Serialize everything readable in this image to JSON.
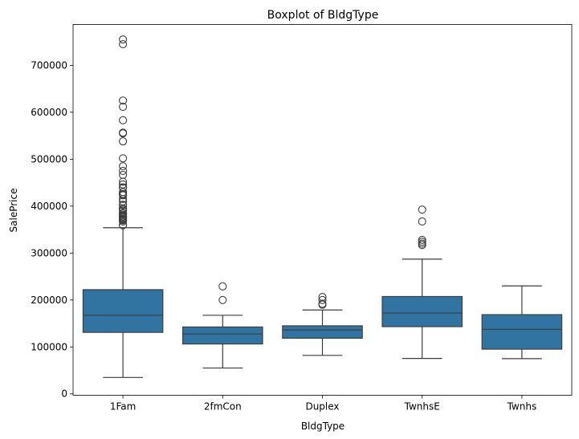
{
  "chart_data": {
    "type": "box",
    "title": "Boxplot of BldgType",
    "xlabel": "BldgType",
    "ylabel": "SalePrice",
    "ylim": [
      -3000,
      787000
    ],
    "yticks": [
      0,
      100000,
      200000,
      300000,
      400000,
      500000,
      600000,
      700000
    ],
    "ytick_labels": [
      "0",
      "100000",
      "200000",
      "300000",
      "400000",
      "500000",
      "600000",
      "700000"
    ],
    "grid": false,
    "legend": "none",
    "box_color": "#3274a1",
    "line_color": "#3d3d3d",
    "categories": [
      "1Fam",
      "2fmCon",
      "Duplex",
      "TwnhsE",
      "Twnhs"
    ],
    "boxes": [
      {
        "category": "1Fam",
        "whisker_low": 34900,
        "q1": 131000,
        "median": 167500,
        "q3": 222000,
        "whisker_high": 354000,
        "outliers": [
          755000,
          745000,
          625000,
          611657,
          582933,
          556581,
          555000,
          538000,
          501837,
          485000,
          475000,
          466500,
          451950,
          446261,
          440000,
          438780,
          430000,
          426000,
          424870,
          423000,
          415298,
          410000,
          402861,
          402000,
          395000,
          394617,
          392500,
          390000,
          385000,
          383970,
          381000,
          378500,
          377500,
          377426,
          375000,
          372500,
          372402,
          370878,
          369900,
          367294,
          360000,
          359100
        ]
      },
      {
        "category": "2fmCon",
        "whisker_low": 55000,
        "q1": 106250,
        "median": 127500,
        "q3": 142500,
        "whisker_high": 167500,
        "outliers": [
          228950,
          200000
        ]
      },
      {
        "category": "Duplex",
        "whisker_low": 82000,
        "q1": 118500,
        "median": 135980,
        "q3": 145000,
        "whisker_high": 178740,
        "outliers": [
          206300,
          200000,
          192000,
          190000
        ]
      },
      {
        "category": "TwnhsE",
        "whisker_low": 75500,
        "q1": 143187,
        "median": 172200,
        "q3": 207375,
        "whisker_high": 287000,
        "outliers": [
          392500,
          367294,
          328000,
          324000,
          320000,
          317000
        ]
      },
      {
        "category": "Twnhs",
        "whisker_low": 75000,
        "q1": 95250,
        "median": 137500,
        "q3": 168750,
        "whisker_high": 230000,
        "outliers": []
      }
    ]
  }
}
